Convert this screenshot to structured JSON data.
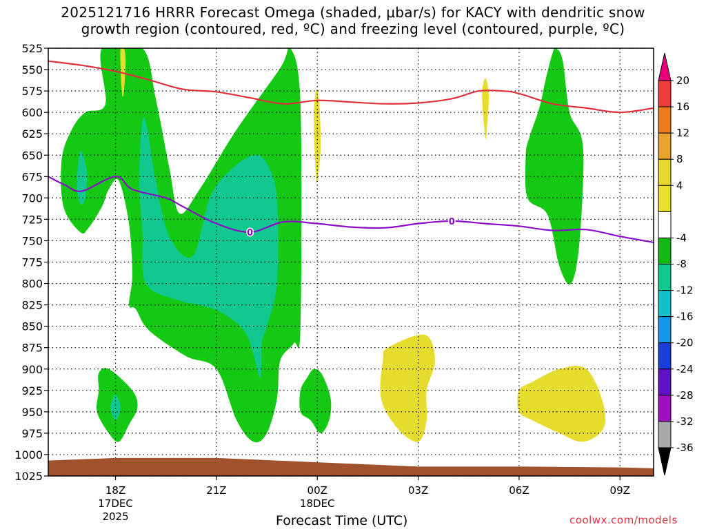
{
  "title": {
    "line1": "2025121716 HRRR Forecast Omega (shaded, μbar/s) for KACY with dendritic snow",
    "line2": "growth region (contoured, red, ºC) and freezing level (contoured, purple, ºC)"
  },
  "footer": {
    "xlabel": "Forecast Time (UTC)",
    "credit": "coolwx.com/models"
  },
  "chart_data": {
    "type": "heatmap",
    "subtype": "time-height cross section",
    "x_unit": "hours from 2025-12-17 16Z",
    "xlim": [
      0,
      18
    ],
    "y_unit": "mb",
    "ylim": [
      1025,
      525
    ],
    "y_ticks": [
      525,
      550,
      575,
      600,
      625,
      650,
      675,
      700,
      725,
      750,
      775,
      800,
      825,
      850,
      875,
      900,
      925,
      950,
      975,
      1000,
      1025
    ],
    "x_ticks": [
      {
        "x": 2,
        "lines": [
          "18Z",
          "17DEC",
          "2025"
        ]
      },
      {
        "x": 5,
        "lines": [
          "21Z"
        ]
      },
      {
        "x": 8,
        "lines": [
          "00Z",
          "18DEC"
        ]
      },
      {
        "x": 11,
        "lines": [
          "03Z"
        ]
      },
      {
        "x": 14,
        "lines": [
          "06Z"
        ]
      },
      {
        "x": 17,
        "lines": [
          "09Z"
        ]
      }
    ],
    "colorbar": {
      "labels": [
        "20",
        "16",
        "12",
        "8",
        "4",
        "-4",
        "-8",
        "-12",
        "-16",
        "-20",
        "-24",
        "-28",
        "-32",
        "-36"
      ],
      "colors": [
        "#e8007e",
        "#f03c3c",
        "#f07a1e",
        "#e8a430",
        "#e8d82c",
        "#e8e02c",
        "#ffffff",
        "#14b814",
        "#10c890",
        "#12c0c8",
        "#1496e8",
        "#1a3cd8",
        "#6010c8",
        "#a010c0",
        "#a8a8a8",
        "#000000"
      ]
    },
    "shaded_regions": [
      {
        "level": "-8",
        "color": "#14c814",
        "points": [
          [
            1.6,
            525
          ],
          [
            2.8,
            525
          ],
          [
            3.2,
            585
          ],
          [
            3.6,
            665
          ],
          [
            3.9,
            718
          ],
          [
            4.5,
            690
          ],
          [
            5.6,
            620
          ],
          [
            6.9,
            548
          ],
          [
            7.2,
            525
          ],
          [
            7.5,
            590
          ],
          [
            7.5,
            850
          ],
          [
            7.3,
            870
          ],
          [
            6.9,
            890
          ],
          [
            6.8,
            935
          ],
          [
            6.5,
            975
          ],
          [
            6.1,
            985
          ],
          [
            5.6,
            960
          ],
          [
            5.0,
            900
          ],
          [
            4.1,
            885
          ],
          [
            3.0,
            855
          ],
          [
            2.6,
            830
          ],
          [
            2.4,
            825
          ],
          [
            2.5,
            790
          ],
          [
            2.4,
            730
          ],
          [
            2.1,
            680
          ],
          [
            1.8,
            690
          ],
          [
            1.6,
            710
          ],
          [
            1.2,
            735
          ],
          [
            0.95,
            740
          ],
          [
            0.45,
            710
          ],
          [
            0.4,
            655
          ],
          [
            0.7,
            620
          ],
          [
            1.1,
            600
          ],
          [
            1.7,
            590
          ]
        ]
      },
      {
        "level": "-12",
        "color": "#10c890",
        "points": [
          [
            2.8,
            610
          ],
          [
            2.95,
            620
          ],
          [
            3.2,
            680
          ],
          [
            3.6,
            745
          ],
          [
            4.3,
            768
          ],
          [
            4.8,
            700
          ],
          [
            5.4,
            668
          ],
          [
            6.1,
            650
          ],
          [
            6.5,
            660
          ],
          [
            6.8,
            700
          ],
          [
            6.8,
            800
          ],
          [
            6.5,
            850
          ],
          [
            6.35,
            870
          ],
          [
            6.3,
            910
          ],
          [
            5.9,
            860
          ],
          [
            5.2,
            835
          ],
          [
            4.5,
            825
          ],
          [
            3.9,
            820
          ],
          [
            2.9,
            800
          ],
          [
            2.8,
            740
          ],
          [
            2.7,
            680
          ]
        ]
      },
      {
        "level": "-12",
        "color": "#10c890",
        "points": [
          [
            0.95,
            645
          ],
          [
            1.15,
            670
          ],
          [
            1.1,
            700
          ],
          [
            0.95,
            707
          ],
          [
            0.85,
            685
          ]
        ]
      },
      {
        "level": "-8",
        "color": "#14c814",
        "points": [
          [
            1.5,
            905
          ],
          [
            1.8,
            900
          ],
          [
            2.5,
            925
          ],
          [
            2.65,
            945
          ],
          [
            2.4,
            965
          ],
          [
            2.1,
            985
          ],
          [
            1.8,
            975
          ],
          [
            1.45,
            950
          ],
          [
            1.5,
            925
          ]
        ]
      },
      {
        "level": "-12",
        "color": "#10c890",
        "points": [
          [
            2.0,
            930
          ],
          [
            2.15,
            945
          ],
          [
            2.0,
            960
          ],
          [
            1.85,
            945
          ]
        ]
      },
      {
        "level": "-8",
        "color": "#14c814",
        "points": [
          [
            7.9,
            900
          ],
          [
            8.15,
            907
          ],
          [
            8.4,
            935
          ],
          [
            8.35,
            960
          ],
          [
            8.1,
            975
          ],
          [
            7.8,
            960
          ],
          [
            7.5,
            950
          ],
          [
            7.5,
            925
          ],
          [
            7.7,
            910
          ]
        ]
      },
      {
        "level": "-8",
        "color": "#14c814",
        "points": [
          [
            15.3,
            540
          ],
          [
            15.5,
            600
          ],
          [
            15.9,
            640
          ],
          [
            15.8,
            750
          ],
          [
            15.55,
            800
          ],
          [
            15.2,
            780
          ],
          [
            14.85,
            720
          ],
          [
            14.25,
            700
          ],
          [
            14.2,
            650
          ],
          [
            14.3,
            630
          ],
          [
            14.6,
            595
          ],
          [
            14.8,
            560
          ],
          [
            15.0,
            530
          ],
          [
            15.1,
            525
          ]
        ]
      },
      {
        "level": "4",
        "color": "#e6dc2e",
        "points": [
          [
            2.15,
            525
          ],
          [
            2.25,
            525
          ],
          [
            2.3,
            540
          ],
          [
            2.25,
            575
          ],
          [
            2.2,
            580
          ],
          [
            2.15,
            550
          ]
        ]
      },
      {
        "level": "4",
        "color": "#e6dc2e",
        "points": [
          [
            7.95,
            575
          ],
          [
            8.05,
            585
          ],
          [
            8.1,
            640
          ],
          [
            8.0,
            680
          ],
          [
            7.95,
            670
          ],
          [
            7.9,
            610
          ]
        ]
      },
      {
        "level": "4",
        "color": "#e6dc2e",
        "points": [
          [
            13.0,
            560
          ],
          [
            13.1,
            580
          ],
          [
            13.05,
            615
          ],
          [
            13.0,
            630
          ],
          [
            12.9,
            580
          ]
        ]
      },
      {
        "level": "4",
        "color": "#e6dc2e",
        "points": [
          [
            10.1,
            875
          ],
          [
            11.2,
            860
          ],
          [
            11.5,
            890
          ],
          [
            11.25,
            925
          ],
          [
            11.25,
            960
          ],
          [
            11.0,
            985
          ],
          [
            10.4,
            970
          ],
          [
            9.9,
            935
          ],
          [
            9.95,
            890
          ]
        ]
      },
      {
        "level": "4",
        "color": "#e6dc2e",
        "points": [
          [
            14.4,
            915
          ],
          [
            15.2,
            900
          ],
          [
            16.0,
            900
          ],
          [
            16.5,
            940
          ],
          [
            16.5,
            970
          ],
          [
            15.9,
            985
          ],
          [
            15.2,
            975
          ],
          [
            14.4,
            960
          ],
          [
            14.0,
            950
          ],
          [
            14.0,
            925
          ]
        ]
      }
    ],
    "series": [
      {
        "color": "#e0303c",
        "values": [
          [
            0,
            540
          ],
          [
            1,
            545
          ],
          [
            2,
            552
          ],
          [
            3,
            562
          ],
          [
            4,
            573
          ],
          [
            5,
            576
          ],
          [
            6,
            583
          ],
          [
            7,
            590
          ],
          [
            8,
            586
          ],
          [
            9,
            588
          ],
          [
            10,
            590
          ],
          [
            11,
            589
          ],
          [
            12,
            584
          ],
          [
            12.8,
            575
          ],
          [
            13.5,
            575
          ],
          [
            14,
            578
          ],
          [
            15,
            590
          ],
          [
            16,
            595
          ],
          [
            17,
            600
          ],
          [
            18,
            595
          ]
        ]
      },
      {
        "color": "#8a0cc8",
        "label": "0",
        "label_x": [
          6.0,
          12.0
        ],
        "values": [
          [
            0,
            675
          ],
          [
            0.5,
            685
          ],
          [
            1,
            692
          ],
          [
            2,
            675
          ],
          [
            2.5,
            690
          ],
          [
            3.5,
            700
          ],
          [
            4.0,
            710
          ],
          [
            5,
            730
          ],
          [
            6,
            740
          ],
          [
            7,
            728
          ],
          [
            8,
            730
          ],
          [
            9,
            734
          ],
          [
            10,
            735
          ],
          [
            11,
            730
          ],
          [
            12,
            727
          ],
          [
            13,
            730
          ],
          [
            14,
            733
          ],
          [
            15,
            738
          ],
          [
            16,
            737
          ],
          [
            17,
            745
          ],
          [
            18,
            752
          ]
        ]
      }
    ],
    "terrain": {
      "color": "#a0522d",
      "top_mb": [
        [
          0,
          1007
        ],
        [
          2,
          1004
        ],
        [
          5,
          1004
        ],
        [
          8,
          1009
        ],
        [
          11,
          1014
        ],
        [
          14,
          1014
        ],
        [
          17,
          1015
        ],
        [
          18,
          1016
        ]
      ]
    }
  }
}
